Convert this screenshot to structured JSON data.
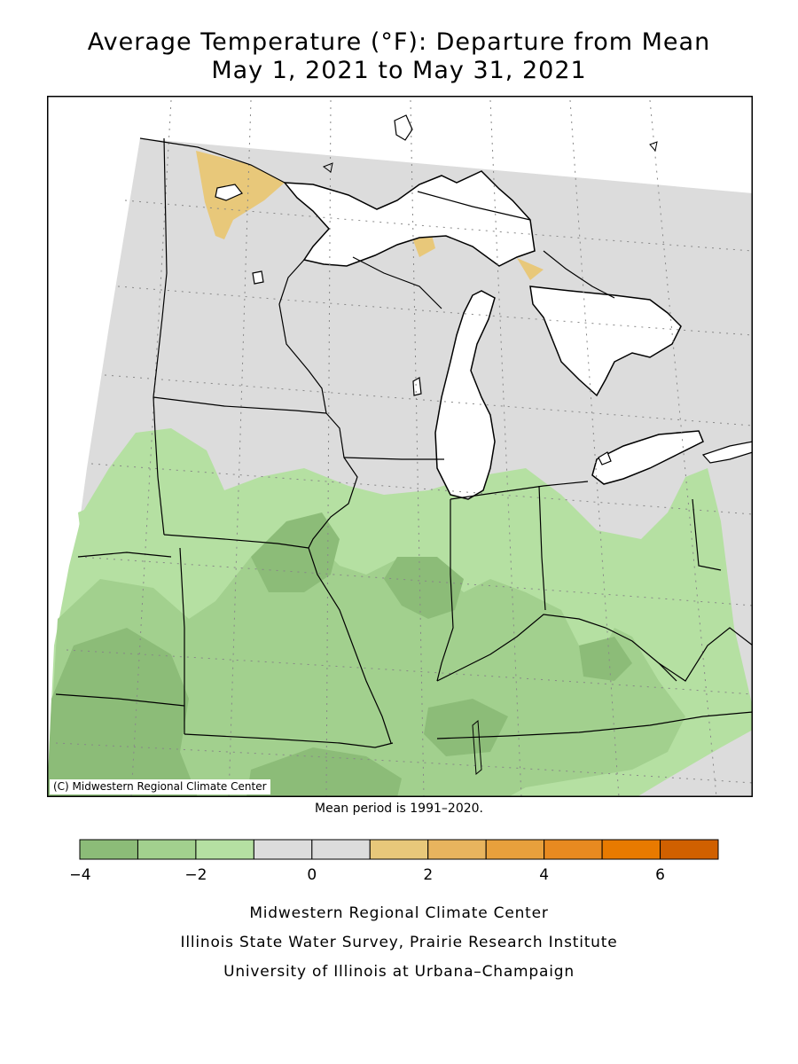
{
  "title": {
    "line1": "Average Temperature (°F): Departure from Mean",
    "line2": "May 1, 2021 to May 31, 2021"
  },
  "map": {
    "copyright": "(C) Midwestern Regional Climate Center",
    "colors": {
      "below_3": "#8cbc78",
      "below_2": "#a2d08e",
      "below_1": "#b5e0a2",
      "near_normal": "#dcdcdc",
      "above_1": "#e8c87a",
      "water": "#ffffff",
      "border": "#000000"
    }
  },
  "mean_period": "Mean period is 1991–2020.",
  "legend": {
    "bins": [
      {
        "from": -4,
        "to": -3,
        "color": "#8cbc78"
      },
      {
        "from": -3,
        "to": -2,
        "color": "#a2d08e"
      },
      {
        "from": -2,
        "to": -1,
        "color": "#b5e0a2"
      },
      {
        "from": -1,
        "to": 0,
        "color": "#dcdcdc"
      },
      {
        "from": 0,
        "to": 1,
        "color": "#dcdcdc"
      },
      {
        "from": 1,
        "to": 2,
        "color": "#e8c87a"
      },
      {
        "from": 2,
        "to": 3,
        "color": "#e8b45e"
      },
      {
        "from": 3,
        "to": 4,
        "color": "#e8a03c"
      },
      {
        "from": 4,
        "to": 5,
        "color": "#e88a20"
      },
      {
        "from": 5,
        "to": 6,
        "color": "#e87a00"
      },
      {
        "from": 6,
        "to": 7,
        "color": "#d06000"
      }
    ],
    "labels": [
      {
        "value": -4,
        "text": "−4"
      },
      {
        "value": -2,
        "text": "−2"
      },
      {
        "value": 0,
        "text": "0"
      },
      {
        "value": 2,
        "text": "2"
      },
      {
        "value": 4,
        "text": "4"
      },
      {
        "value": 6,
        "text": "6"
      }
    ]
  },
  "credits": {
    "line1": "Midwestern Regional Climate Center",
    "line2": "Illinois State Water Survey, Prairie Research Institute",
    "line3": "University of Illinois at Urbana–Champaign"
  }
}
